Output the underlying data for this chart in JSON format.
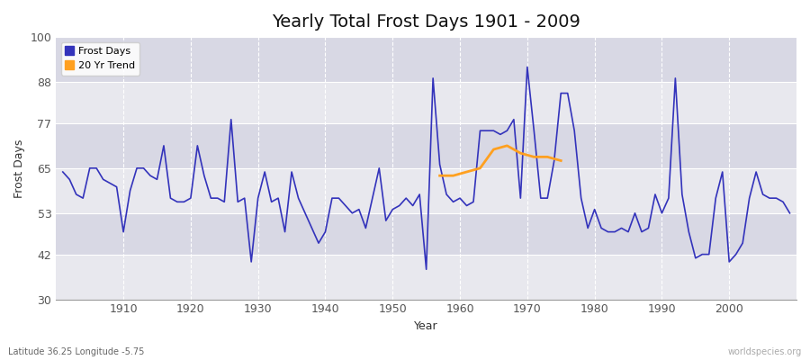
{
  "title": "Yearly Total Frost Days 1901 - 2009",
  "xlabel": "Year",
  "ylabel": "Frost Days",
  "subtitle": "Latitude 36.25 Longitude -5.75",
  "watermark": "worldspecies.org",
  "ylim": [
    30,
    100
  ],
  "yticks": [
    30,
    42,
    53,
    65,
    77,
    88,
    100
  ],
  "xlim": [
    1900,
    2010
  ],
  "xticks": [
    1910,
    1920,
    1930,
    1940,
    1950,
    1960,
    1970,
    1980,
    1990,
    2000
  ],
  "frost_years": [
    1901,
    1902,
    1903,
    1904,
    1905,
    1906,
    1907,
    1908,
    1909,
    1910,
    1911,
    1912,
    1913,
    1914,
    1915,
    1916,
    1917,
    1918,
    1919,
    1920,
    1921,
    1922,
    1923,
    1924,
    1925,
    1926,
    1927,
    1928,
    1929,
    1930,
    1931,
    1932,
    1933,
    1934,
    1935,
    1936,
    1937,
    1938,
    1939,
    1940,
    1941,
    1942,
    1943,
    1944,
    1945,
    1946,
    1947,
    1948,
    1949,
    1950,
    1951,
    1952,
    1953,
    1954,
    1955,
    1956,
    1957,
    1958,
    1959,
    1960,
    1961,
    1962,
    1963,
    1964,
    1965,
    1966,
    1967,
    1968,
    1969,
    1970,
    1971,
    1972,
    1973,
    1974,
    1975,
    1976,
    1977,
    1978,
    1979,
    1980,
    1981,
    1982,
    1983,
    1984,
    1985,
    1986,
    1987,
    1988,
    1989,
    1990,
    1991,
    1992,
    1993,
    1994,
    1995,
    1996,
    1997,
    1998,
    1999,
    2000,
    2001,
    2002,
    2003,
    2004,
    2005,
    2006,
    2007,
    2008,
    2009
  ],
  "frost_values": [
    64,
    62,
    58,
    57,
    65,
    65,
    62,
    61,
    60,
    48,
    59,
    65,
    65,
    63,
    62,
    71,
    57,
    56,
    56,
    57,
    71,
    63,
    57,
    57,
    56,
    78,
    56,
    57,
    40,
    57,
    64,
    56,
    57,
    48,
    64,
    57,
    53,
    49,
    45,
    48,
    57,
    57,
    55,
    53,
    54,
    49,
    57,
    65,
    51,
    54,
    55,
    57,
    55,
    58,
    38,
    89,
    66,
    58,
    56,
    57,
    55,
    56,
    75,
    75,
    75,
    74,
    75,
    78,
    57,
    92,
    75,
    57,
    57,
    67,
    85,
    85,
    75,
    57,
    49,
    54,
    49,
    48,
    48,
    49,
    48,
    53,
    48,
    49,
    58,
    53,
    57,
    89,
    58,
    48,
    41,
    42,
    42,
    57,
    64,
    40,
    42,
    45,
    57,
    64,
    58,
    57,
    57,
    56,
    53
  ],
  "trend_years": [
    1957,
    1959,
    1961,
    1963,
    1965,
    1967,
    1969,
    1971,
    1973,
    1975
  ],
  "trend_values": [
    63,
    63,
    64,
    65,
    70,
    71,
    69,
    68,
    68,
    67
  ],
  "frost_color": "#3333bb",
  "trend_color": "#FFA020",
  "fig_bg": "#ffffff",
  "plot_bg_light": "#ebebf0",
  "plot_bg_dark": "#dcdce8",
  "grid_color": "#ffffff",
  "legend_frost": "Frost Days",
  "legend_trend": "20 Yr Trend",
  "title_fontsize": 14,
  "axis_label_fontsize": 9,
  "tick_fontsize": 9,
  "band_ranges": [
    [
      30,
      42
    ],
    [
      53,
      65
    ],
    [
      77,
      88
    ]
  ],
  "band_light_ranges": [
    [
      42,
      53
    ],
    [
      65,
      77
    ],
    [
      88,
      100
    ]
  ]
}
